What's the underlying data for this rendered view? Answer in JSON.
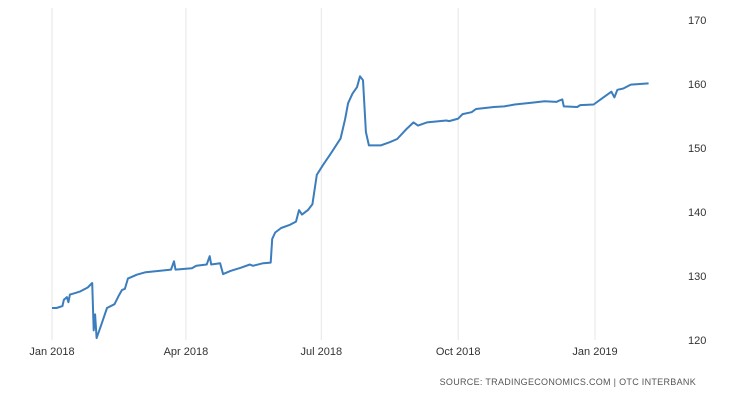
{
  "chart_data": {
    "type": "line",
    "title": "",
    "xlabel": "",
    "ylabel": "",
    "ylim": [
      120,
      170
    ],
    "xlim": [
      "2018-01-01",
      "2019-02-15"
    ],
    "y_ticks": [
      120,
      130,
      140,
      150,
      160,
      170
    ],
    "y_axis_position": "right",
    "x_ticks": [
      {
        "date": "2018-01-01",
        "label": "Jan 2018"
      },
      {
        "date": "2018-04-01",
        "label": "Apr 2018"
      },
      {
        "date": "2018-07-01",
        "label": "Jul 2018"
      },
      {
        "date": "2018-10-01",
        "label": "Oct 2018"
      },
      {
        "date": "2019-01-01",
        "label": "Jan 2019"
      }
    ],
    "grid": {
      "vertical": true,
      "horizontal": false
    },
    "line_color": "#3b7dbd",
    "series": [
      {
        "values": [
          {
            "x": "2018-01-01",
            "y": 125.0
          },
          {
            "x": "2018-01-04",
            "y": 125.0
          },
          {
            "x": "2018-01-08",
            "y": 125.3
          },
          {
            "x": "2018-01-09",
            "y": 126.3
          },
          {
            "x": "2018-01-11",
            "y": 126.7
          },
          {
            "x": "2018-01-12",
            "y": 125.9
          },
          {
            "x": "2018-01-13",
            "y": 127.1
          },
          {
            "x": "2018-01-16",
            "y": 127.3
          },
          {
            "x": "2018-01-20",
            "y": 127.6
          },
          {
            "x": "2018-01-25",
            "y": 128.2
          },
          {
            "x": "2018-01-28",
            "y": 128.9
          },
          {
            "x": "2018-01-29",
            "y": 121.5
          },
          {
            "x": "2018-01-30",
            "y": 124.0
          },
          {
            "x": "2018-01-31",
            "y": 120.3
          },
          {
            "x": "2018-02-03",
            "y": 122.3
          },
          {
            "x": "2018-02-07",
            "y": 125.0
          },
          {
            "x": "2018-02-12",
            "y": 125.6
          },
          {
            "x": "2018-02-15",
            "y": 127.0
          },
          {
            "x": "2018-02-17",
            "y": 127.8
          },
          {
            "x": "2018-02-19",
            "y": 128.0
          },
          {
            "x": "2018-02-21",
            "y": 129.6
          },
          {
            "x": "2018-02-27",
            "y": 130.2
          },
          {
            "x": "2018-03-05",
            "y": 130.6
          },
          {
            "x": "2018-03-14",
            "y": 130.8
          },
          {
            "x": "2018-03-22",
            "y": 131.0
          },
          {
            "x": "2018-03-24",
            "y": 132.3
          },
          {
            "x": "2018-03-25",
            "y": 131.0
          },
          {
            "x": "2018-04-05",
            "y": 131.2
          },
          {
            "x": "2018-04-08",
            "y": 131.6
          },
          {
            "x": "2018-04-15",
            "y": 131.8
          },
          {
            "x": "2018-04-17",
            "y": 133.1
          },
          {
            "x": "2018-04-18",
            "y": 131.8
          },
          {
            "x": "2018-04-24",
            "y": 132.0
          },
          {
            "x": "2018-04-26",
            "y": 130.3
          },
          {
            "x": "2018-05-01",
            "y": 130.8
          },
          {
            "x": "2018-05-08",
            "y": 131.3
          },
          {
            "x": "2018-05-14",
            "y": 131.8
          },
          {
            "x": "2018-05-16",
            "y": 131.6
          },
          {
            "x": "2018-05-23",
            "y": 132.0
          },
          {
            "x": "2018-05-28",
            "y": 132.1
          },
          {
            "x": "2018-05-29",
            "y": 135.8
          },
          {
            "x": "2018-05-31",
            "y": 136.8
          },
          {
            "x": "2018-06-04",
            "y": 137.5
          },
          {
            "x": "2018-06-10",
            "y": 138.0
          },
          {
            "x": "2018-06-14",
            "y": 138.5
          },
          {
            "x": "2018-06-16",
            "y": 140.3
          },
          {
            "x": "2018-06-18",
            "y": 139.6
          },
          {
            "x": "2018-06-22",
            "y": 140.3
          },
          {
            "x": "2018-06-25",
            "y": 141.2
          },
          {
            "x": "2018-06-28",
            "y": 145.8
          },
          {
            "x": "2018-07-02",
            "y": 147.3
          },
          {
            "x": "2018-07-07",
            "y": 149.0
          },
          {
            "x": "2018-07-14",
            "y": 151.5
          },
          {
            "x": "2018-07-17",
            "y": 154.5
          },
          {
            "x": "2018-07-19",
            "y": 157.0
          },
          {
            "x": "2018-07-22",
            "y": 158.5
          },
          {
            "x": "2018-07-25",
            "y": 159.5
          },
          {
            "x": "2018-07-27",
            "y": 161.2
          },
          {
            "x": "2018-07-29",
            "y": 160.6
          },
          {
            "x": "2018-07-31",
            "y": 152.5
          },
          {
            "x": "2018-08-02",
            "y": 150.4
          },
          {
            "x": "2018-08-10",
            "y": 150.4
          },
          {
            "x": "2018-08-16",
            "y": 150.9
          },
          {
            "x": "2018-08-21",
            "y": 151.4
          },
          {
            "x": "2018-08-27",
            "y": 152.9
          },
          {
            "x": "2018-09-01",
            "y": 154.0
          },
          {
            "x": "2018-09-04",
            "y": 153.5
          },
          {
            "x": "2018-09-10",
            "y": 154.0
          },
          {
            "x": "2018-09-23",
            "y": 154.3
          },
          {
            "x": "2018-09-25",
            "y": 154.2
          },
          {
            "x": "2018-10-01",
            "y": 154.6
          },
          {
            "x": "2018-10-04",
            "y": 155.3
          },
          {
            "x": "2018-10-10",
            "y": 155.6
          },
          {
            "x": "2018-10-13",
            "y": 156.1
          },
          {
            "x": "2018-10-25",
            "y": 156.4
          },
          {
            "x": "2018-11-01",
            "y": 156.5
          },
          {
            "x": "2018-11-08",
            "y": 156.8
          },
          {
            "x": "2018-11-20",
            "y": 157.1
          },
          {
            "x": "2018-11-28",
            "y": 157.3
          },
          {
            "x": "2018-12-06",
            "y": 157.2
          },
          {
            "x": "2018-12-08",
            "y": 157.4
          },
          {
            "x": "2018-12-10",
            "y": 157.6
          },
          {
            "x": "2018-12-11",
            "y": 156.5
          },
          {
            "x": "2018-12-20",
            "y": 156.4
          },
          {
            "x": "2018-12-22",
            "y": 156.7
          },
          {
            "x": "2018-12-31",
            "y": 156.8
          },
          {
            "x": "2019-01-06",
            "y": 157.8
          },
          {
            "x": "2019-01-12",
            "y": 158.8
          },
          {
            "x": "2019-01-14",
            "y": 157.9
          },
          {
            "x": "2019-01-16",
            "y": 159.1
          },
          {
            "x": "2019-01-20",
            "y": 159.3
          },
          {
            "x": "2019-01-25",
            "y": 159.9
          },
          {
            "x": "2019-01-31",
            "y": 160.0
          },
          {
            "x": "2019-02-06",
            "y": 160.1
          }
        ]
      }
    ],
    "source_text": "SOURCE: TRADINGECONOMICS.COM | OTC INTERBANK"
  }
}
